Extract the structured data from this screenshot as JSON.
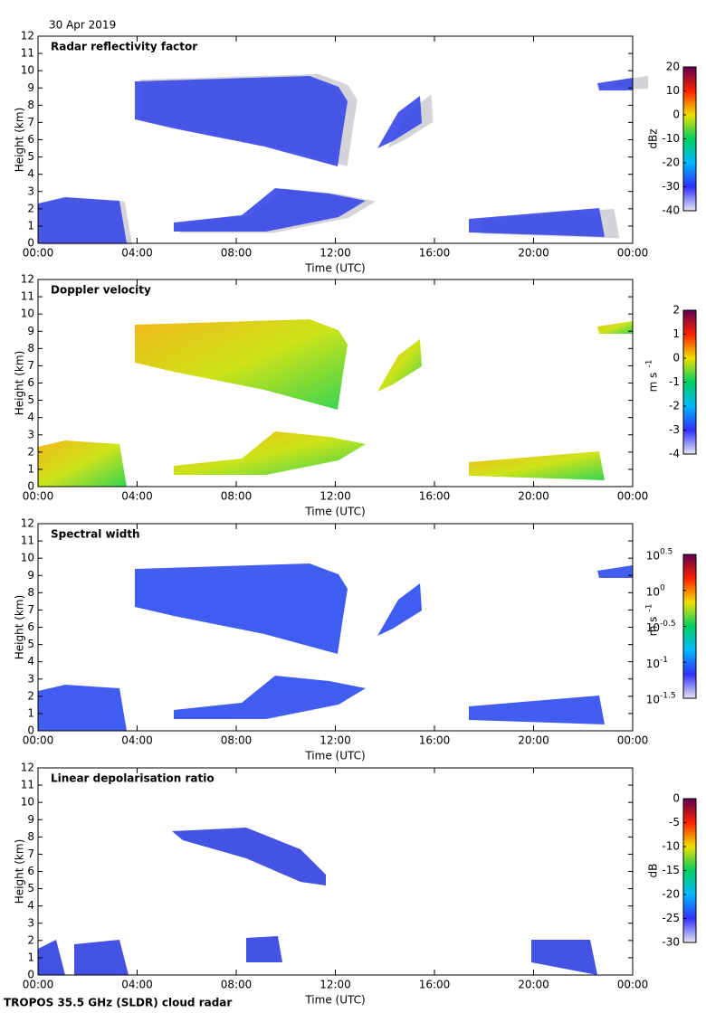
{
  "date": "30 Apr 2019",
  "footer": "TROPOS 35.5 GHz (SLDR) cloud radar",
  "chart_data": [
    {
      "type": "heatmap",
      "title": "Radar reflectivity factor",
      "x_label": "Time (UTC)",
      "y_label": "Height (km)",
      "xlim": [
        0,
        24
      ],
      "xticks": [
        {
          "value": 0,
          "label": "00:00"
        },
        {
          "value": 4,
          "label": "04:00"
        },
        {
          "value": 8,
          "label": "08:00"
        },
        {
          "value": 12,
          "label": "12:00"
        },
        {
          "value": 16,
          "label": "16:00"
        },
        {
          "value": 20,
          "label": "20:00"
        },
        {
          "value": 24,
          "label": "00:00"
        }
      ],
      "ylim": [
        0,
        12
      ],
      "yticks": [
        0,
        1,
        2,
        3,
        4,
        5,
        6,
        7,
        8,
        9,
        10,
        11,
        12
      ],
      "colorbar": {
        "label": "dBz",
        "lim": [
          -40,
          20
        ],
        "ticks": [
          -40,
          -30,
          -20,
          -10,
          0,
          10,
          20
        ],
        "colors": [
          "#e6e6f4",
          "#3030ff",
          "#00b8ff",
          "#00d060",
          "#f0e000",
          "#ff2000",
          "#600050"
        ]
      }
    },
    {
      "type": "heatmap",
      "title": "Doppler velocity",
      "x_label": "Time (UTC)",
      "y_label": "Height (km)",
      "xlim": [
        0,
        24
      ],
      "xticks": [
        {
          "value": 0,
          "label": "00:00"
        },
        {
          "value": 4,
          "label": "04:00"
        },
        {
          "value": 8,
          "label": "08:00"
        },
        {
          "value": 12,
          "label": "12:00"
        },
        {
          "value": 16,
          "label": "16:00"
        },
        {
          "value": 20,
          "label": "20:00"
        },
        {
          "value": 24,
          "label": "00:00"
        }
      ],
      "ylim": [
        0,
        12
      ],
      "yticks": [
        0,
        1,
        2,
        3,
        4,
        5,
        6,
        7,
        8,
        9,
        10,
        11,
        12
      ],
      "colorbar": {
        "label": "m s",
        "label_exponent": "-1",
        "lim": [
          -4,
          2
        ],
        "ticks": [
          -4,
          -3,
          -2,
          -1,
          0,
          1,
          2
        ],
        "colors": [
          "#e6e6f4",
          "#3030ff",
          "#00b8ff",
          "#00d060",
          "#f0e000",
          "#ff2000",
          "#600050"
        ]
      }
    },
    {
      "type": "heatmap",
      "title": "Spectral width",
      "x_label": "Time (UTC)",
      "y_label": "Height (km)",
      "xlim": [
        0,
        24
      ],
      "xticks": [
        {
          "value": 0,
          "label": "00:00"
        },
        {
          "value": 4,
          "label": "04:00"
        },
        {
          "value": 8,
          "label": "08:00"
        },
        {
          "value": 12,
          "label": "12:00"
        },
        {
          "value": 16,
          "label": "16:00"
        },
        {
          "value": 20,
          "label": "20:00"
        },
        {
          "value": 24,
          "label": "00:00"
        }
      ],
      "ylim": [
        0,
        12
      ],
      "yticks": [
        0,
        1,
        2,
        3,
        4,
        5,
        6,
        7,
        8,
        9,
        10,
        11,
        12
      ],
      "colorbar": {
        "label": "m s",
        "label_exponent": "-1",
        "lim": [
          -1.5,
          0.5
        ],
        "log": true,
        "ticks": [
          {
            "value": -1.5,
            "label": "10",
            "exponent": "-1.5"
          },
          {
            "value": -1,
            "label": "10",
            "exponent": "-1"
          },
          {
            "value": -0.5,
            "label": "10",
            "exponent": "-0.5"
          },
          {
            "value": 0,
            "label": "10",
            "exponent": "0"
          },
          {
            "value": 0.5,
            "label": "10",
            "exponent": "0.5"
          }
        ],
        "colors": [
          "#e6e6f4",
          "#3030ff",
          "#00b8ff",
          "#00d060",
          "#f0e000",
          "#ff2000",
          "#600050"
        ]
      }
    },
    {
      "type": "heatmap",
      "title": "Linear depolarisation ratio",
      "x_label": "Time (UTC)",
      "y_label": "Height (km)",
      "xlim": [
        0,
        24
      ],
      "xticks": [
        {
          "value": 0,
          "label": "00:00"
        },
        {
          "value": 4,
          "label": "04:00"
        },
        {
          "value": 8,
          "label": "08:00"
        },
        {
          "value": 12,
          "label": "12:00"
        },
        {
          "value": 16,
          "label": "16:00"
        },
        {
          "value": 20,
          "label": "20:00"
        },
        {
          "value": 24,
          "label": "00:00"
        }
      ],
      "ylim": [
        0,
        12
      ],
      "yticks": [
        0,
        1,
        2,
        3,
        4,
        5,
        6,
        7,
        8,
        9,
        10,
        11,
        12
      ],
      "colorbar": {
        "label": "dB",
        "lim": [
          -30,
          0
        ],
        "ticks": [
          -30,
          -25,
          -20,
          -15,
          -10,
          -5,
          0
        ],
        "colors": [
          "#e6e6f4",
          "#3030ff",
          "#00b8ff",
          "#00d060",
          "#f0e000",
          "#ff2000",
          "#600050"
        ]
      }
    }
  ]
}
